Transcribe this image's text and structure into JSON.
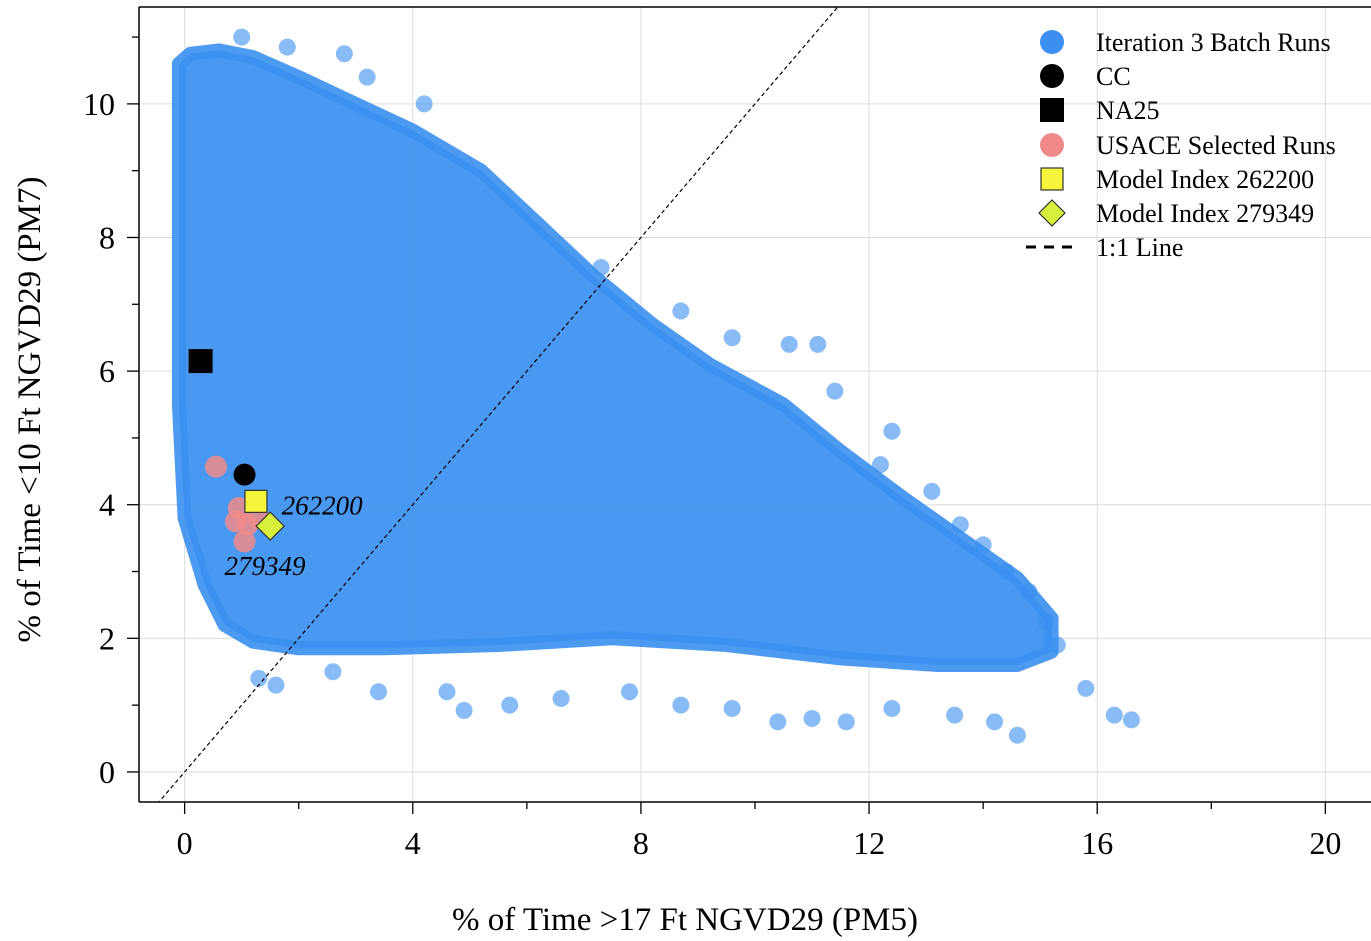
{
  "chart_data": {
    "type": "scatter",
    "title": "",
    "xlabel": "% of Time >17 Ft NGVD29 (PM5)",
    "ylabel": "% of Time <10 Ft NGVD29 (PM7)",
    "xlim": [
      -0.8,
      20.8
    ],
    "ylim": [
      -0.45,
      11.45
    ],
    "x_ticks": [
      0,
      4,
      8,
      12,
      16,
      20
    ],
    "x_tick_labels": [
      "0",
      "4",
      "8",
      "12",
      "16",
      "20"
    ],
    "y_ticks": [
      0,
      2,
      4,
      6,
      8,
      10
    ],
    "y_tick_labels": [
      "0",
      "2",
      "4",
      "6",
      "8",
      "10"
    ],
    "grid": true,
    "legend_position": "top-right",
    "colors": {
      "batch": "#3a8ff0",
      "cc": "#000000",
      "na25": "#000000",
      "usace": "#f08a8a",
      "model_262200": "#f5f53c",
      "model_279349": "#d6f03c",
      "one_to_one": "#000000"
    },
    "series": [
      {
        "name": "Iteration 3 Batch Runs",
        "marker": "circle",
        "cloud_polygon": [
          [
            -0.1,
            10.6
          ],
          [
            0.1,
            10.75
          ],
          [
            0.6,
            10.8
          ],
          [
            1.2,
            10.7
          ],
          [
            2.0,
            10.4
          ],
          [
            3.0,
            10.0
          ],
          [
            4.0,
            9.6
          ],
          [
            5.2,
            9.0
          ],
          [
            6.2,
            8.2
          ],
          [
            7.2,
            7.4
          ],
          [
            8.2,
            6.7
          ],
          [
            9.2,
            6.1
          ],
          [
            10.5,
            5.5
          ],
          [
            11.5,
            4.8
          ],
          [
            12.6,
            4.1
          ],
          [
            13.6,
            3.5
          ],
          [
            14.6,
            2.9
          ],
          [
            15.2,
            2.3
          ],
          [
            15.2,
            1.8
          ],
          [
            14.6,
            1.6
          ],
          [
            13.2,
            1.6
          ],
          [
            11.5,
            1.7
          ],
          [
            9.5,
            1.9
          ],
          [
            7.5,
            2.0
          ],
          [
            5.5,
            1.9
          ],
          [
            3.5,
            1.85
          ],
          [
            2.0,
            1.85
          ],
          [
            1.2,
            1.95
          ],
          [
            0.7,
            2.2
          ],
          [
            0.35,
            2.8
          ],
          [
            0.0,
            3.8
          ],
          [
            -0.1,
            5.5
          ],
          [
            -0.1,
            8.0
          ]
        ],
        "outliers": [
          [
            2.8,
            10.75
          ],
          [
            1.8,
            10.85
          ],
          [
            1.0,
            11.0
          ],
          [
            4.2,
            10.0
          ],
          [
            3.2,
            10.4
          ],
          [
            7.3,
            7.55
          ],
          [
            8.7,
            6.9
          ],
          [
            9.6,
            6.5
          ],
          [
            10.6,
            6.4
          ],
          [
            11.1,
            6.4
          ],
          [
            11.4,
            5.7
          ],
          [
            12.4,
            5.1
          ],
          [
            12.2,
            4.6
          ],
          [
            13.1,
            4.2
          ],
          [
            13.6,
            3.7
          ],
          [
            14.0,
            3.4
          ],
          [
            14.4,
            3.0
          ],
          [
            14.8,
            2.7
          ],
          [
            15.1,
            2.25
          ],
          [
            15.3,
            1.9
          ],
          [
            15.8,
            1.25
          ],
          [
            16.3,
            0.85
          ],
          [
            16.6,
            0.78
          ],
          [
            14.6,
            0.55
          ],
          [
            14.2,
            0.75
          ],
          [
            13.5,
            0.85
          ],
          [
            12.4,
            0.95
          ],
          [
            11.6,
            0.75
          ],
          [
            11.0,
            0.8
          ],
          [
            10.4,
            0.75
          ],
          [
            9.6,
            0.95
          ],
          [
            8.7,
            1.0
          ],
          [
            7.8,
            1.2
          ],
          [
            6.6,
            1.1
          ],
          [
            5.7,
            1.0
          ],
          [
            4.9,
            0.92
          ],
          [
            4.6,
            1.2
          ],
          [
            3.4,
            1.2
          ],
          [
            2.6,
            1.5
          ],
          [
            1.6,
            1.3
          ],
          [
            1.3,
            1.4
          ]
        ]
      },
      {
        "name": "CC",
        "marker": "circle",
        "points": [
          [
            1.05,
            4.45
          ]
        ]
      },
      {
        "name": "NA25",
        "marker": "square",
        "points": [
          [
            0.28,
            6.15
          ]
        ]
      },
      {
        "name": "USACE Selected Runs",
        "marker": "circle",
        "points": [
          [
            0.55,
            4.57
          ],
          [
            0.95,
            3.95
          ],
          [
            1.1,
            3.7
          ],
          [
            1.05,
            3.45
          ],
          [
            1.3,
            3.8
          ],
          [
            0.9,
            3.75
          ]
        ]
      },
      {
        "name": "Model Index 262200",
        "marker": "square",
        "points": [
          [
            1.25,
            4.05
          ]
        ]
      },
      {
        "name": "Model Index 279349",
        "marker": "diamond",
        "points": [
          [
            1.5,
            3.68
          ]
        ]
      },
      {
        "name": "1:1 Line",
        "marker": "dashed-line",
        "points": [
          [
            -0.8,
            -0.8
          ],
          [
            11.45,
            11.45
          ]
        ]
      }
    ],
    "annotations": [
      {
        "text": "262200",
        "x": 1.7,
        "y": 4.0
      },
      {
        "text": "279349",
        "x": 0.7,
        "y": 3.1
      }
    ]
  }
}
